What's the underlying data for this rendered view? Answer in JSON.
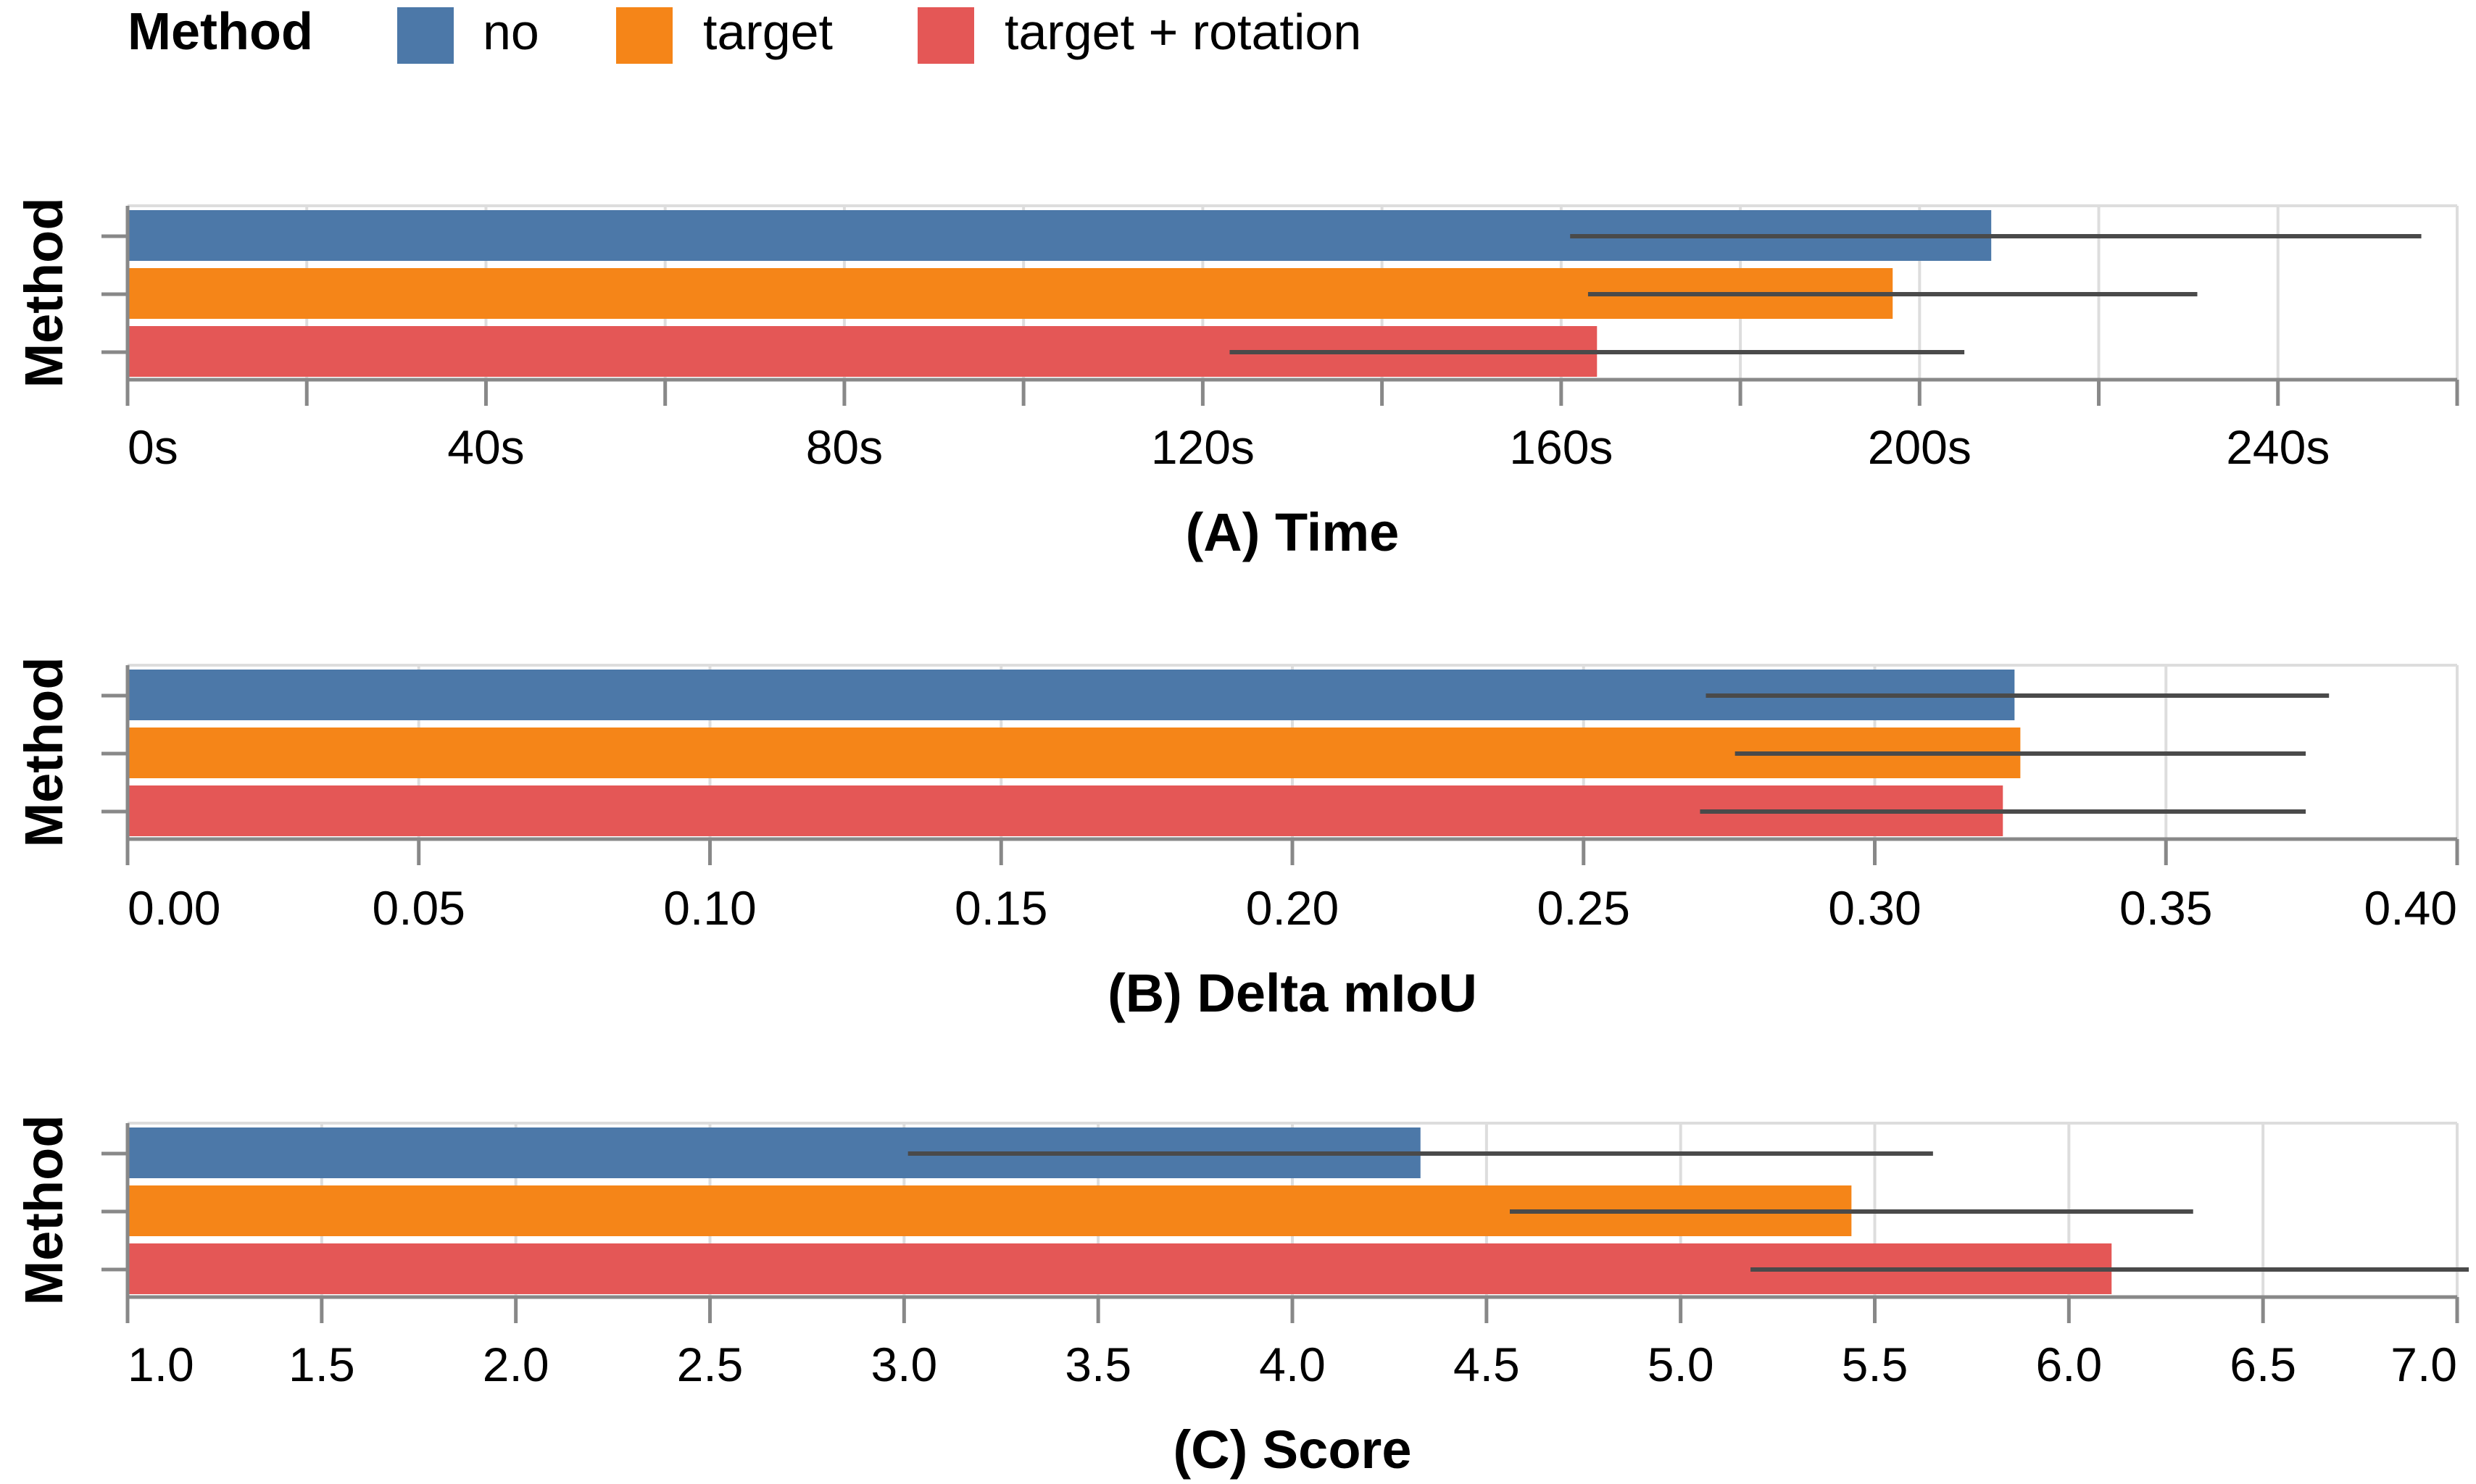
{
  "legend": {
    "title": "Method",
    "items": [
      {
        "label": "no",
        "color": "#4c78a8"
      },
      {
        "label": "target",
        "color": "#f58518"
      },
      {
        "label": "target + rotation",
        "color": "#e45756"
      }
    ]
  },
  "chart_data": [
    {
      "type": "bar",
      "orientation": "horizontal",
      "title": "(A) Time",
      "xlabel": "(A) Time",
      "ylabel": "Method",
      "categories": [
        "no",
        "target",
        "target + rotation"
      ],
      "values": [
        208,
        197,
        164
      ],
      "error_low": [
        161,
        163,
        123
      ],
      "error_high": [
        256,
        231,
        205
      ],
      "xlim": [
        0,
        260
      ],
      "ticks": [
        0,
        20,
        40,
        60,
        80,
        100,
        120,
        140,
        160,
        180,
        200,
        220,
        240,
        260
      ],
      "tick_labels": [
        "0s",
        "",
        "40s",
        "",
        "80s",
        "",
        "120s",
        "",
        "160s",
        "",
        "200s",
        "",
        "240s",
        ""
      ],
      "grid": true
    },
    {
      "type": "bar",
      "orientation": "horizontal",
      "title": "(B) Delta mIoU",
      "xlabel": "(B) Delta mIoU",
      "ylabel": "Method",
      "categories": [
        "no",
        "target",
        "target + rotation"
      ],
      "values": [
        0.324,
        0.325,
        0.322
      ],
      "error_low": [
        0.271,
        0.276,
        0.27
      ],
      "error_high": [
        0.378,
        0.374,
        0.374
      ],
      "xlim": [
        0,
        0.4
      ],
      "ticks": [
        0,
        0.05,
        0.1,
        0.15,
        0.2,
        0.25,
        0.3,
        0.35,
        0.4
      ],
      "tick_labels": [
        "0.00",
        "0.05",
        "0.10",
        "0.15",
        "0.20",
        "0.25",
        "0.30",
        "0.35",
        "0.40"
      ],
      "grid": true
    },
    {
      "type": "bar",
      "orientation": "horizontal",
      "title": "(C) Score",
      "xlabel": "(C) Score",
      "ylabel": "Method",
      "categories": [
        "no",
        "target",
        "target + rotation"
      ],
      "values": [
        4.33,
        5.44,
        6.11
      ],
      "error_low": [
        3.01,
        4.56,
        5.18
      ],
      "error_high": [
        5.65,
        6.32,
        7.03
      ],
      "xlim": [
        1.0,
        7.0
      ],
      "ticks": [
        1.0,
        1.5,
        2.0,
        2.5,
        3.0,
        3.5,
        4.0,
        4.5,
        5.0,
        5.5,
        6.0,
        6.5,
        7.0
      ],
      "tick_labels": [
        "1.0",
        "1.5",
        "2.0",
        "2.5",
        "3.0",
        "3.5",
        "4.0",
        "4.5",
        "5.0",
        "5.5",
        "6.0",
        "6.5",
        "7.0"
      ],
      "grid": true
    }
  ]
}
